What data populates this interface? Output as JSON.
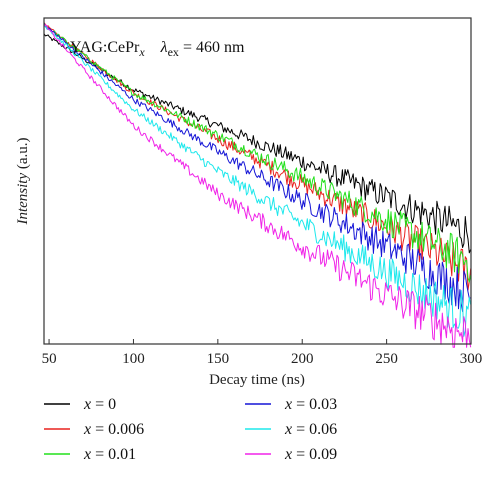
{
  "chart_data": {
    "type": "line",
    "xlabel": "Decay time (ns)",
    "ylabel": "Intensity (a.u.)",
    "xlim": [
      47,
      300
    ],
    "ylim": [
      0,
      1
    ],
    "x_ticks": [
      50,
      100,
      150,
      200,
      250,
      300
    ],
    "y_scale": "log",
    "grid": false,
    "legend_position": "bottom",
    "annotation": {
      "sample": "YAG:CePr",
      "sample_subscript": "x",
      "lambda_symbol": "λ",
      "lambda_subscript": "ex",
      "lambda_value": " = 460 nm"
    },
    "legend_var": "x",
    "series": [
      {
        "name": "= 0",
        "color": "#000000",
        "x": [
          47,
          100,
          150,
          200,
          250,
          300
        ],
        "values": [
          0.95,
          0.78,
          0.67,
          0.56,
          0.45,
          0.34
        ]
      },
      {
        "name": "= 0.006",
        "color": "#e8221e",
        "x": [
          47,
          100,
          150,
          200,
          250,
          300
        ],
        "values": [
          0.98,
          0.77,
          0.63,
          0.49,
          0.36,
          0.22
        ]
      },
      {
        "name": "= 0.01",
        "color": "#22e01c",
        "x": [
          47,
          100,
          150,
          200,
          250,
          300
        ],
        "values": [
          0.98,
          0.77,
          0.64,
          0.51,
          0.38,
          0.25
        ]
      },
      {
        "name": "= 0.03",
        "color": "#1515d6",
        "x": [
          47,
          100,
          150,
          200,
          250,
          300
        ],
        "values": [
          0.98,
          0.75,
          0.59,
          0.44,
          0.3,
          0.15
        ]
      },
      {
        "name": "= 0.06",
        "color": "#1ee8ec",
        "x": [
          47,
          100,
          150,
          200,
          250,
          300
        ],
        "values": [
          0.98,
          0.72,
          0.53,
          0.37,
          0.22,
          0.08
        ]
      },
      {
        "name": "= 0.09",
        "color": "#f024e8",
        "x": [
          47,
          100,
          150,
          200,
          250,
          300
        ],
        "values": [
          0.98,
          0.67,
          0.46,
          0.3,
          0.15,
          0.02
        ]
      }
    ]
  }
}
